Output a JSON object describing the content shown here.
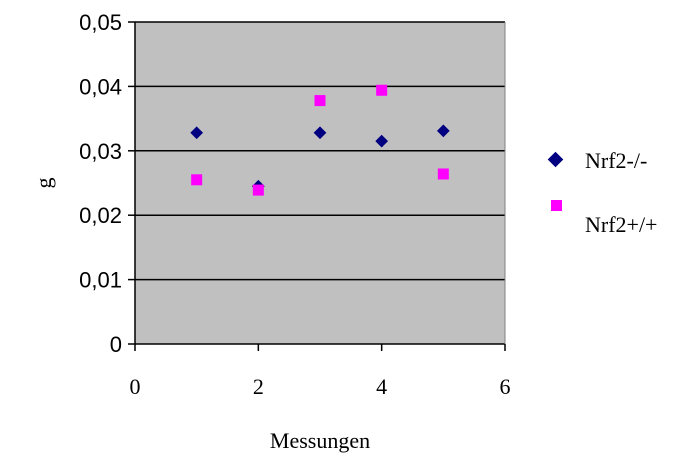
{
  "chart_data": {
    "type": "scatter",
    "title": "",
    "xlabel": "Messungen",
    "ylabel": "g",
    "xlim": [
      0,
      6
    ],
    "ylim": [
      0,
      0.05
    ],
    "x_ticks": [
      0,
      2,
      4,
      6
    ],
    "x_tick_labels": [
      "0",
      "2",
      "4",
      "6"
    ],
    "y_ticks": [
      0,
      0.01,
      0.02,
      0.03,
      0.04,
      0.05
    ],
    "y_tick_labels": [
      "0",
      "0,01",
      "0,02",
      "0,03",
      "0,04",
      "0,05"
    ],
    "grid": "horizontal",
    "plot_background": "#c0c0c0",
    "legend_position": "right",
    "series": [
      {
        "name": "Nrf2-/-",
        "marker": "diamond",
        "color": "#000080",
        "x": [
          1,
          2,
          3,
          4,
          5
        ],
        "y": [
          0.0328,
          0.0245,
          0.0328,
          0.0315,
          0.0331
        ]
      },
      {
        "name": "Nrf2+/+",
        "marker": "square",
        "color": "#ff00ff",
        "x": [
          1,
          2,
          3,
          4,
          5
        ],
        "y": [
          0.0255,
          0.0239,
          0.0378,
          0.0394,
          0.0264
        ]
      }
    ]
  }
}
